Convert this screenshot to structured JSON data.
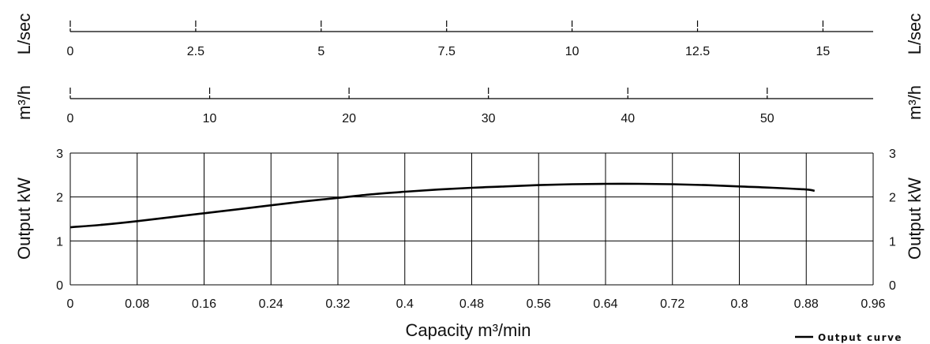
{
  "chart_data": {
    "type": "line",
    "xlabel": "Capacity m³/min",
    "ylabel": "Output kW",
    "ylabel_right": "Output kW",
    "xlim": [
      0,
      0.96
    ],
    "ylim": [
      0,
      3
    ],
    "x_ticks": [
      "0",
      "0.08",
      "0.16",
      "0.24",
      "0.32",
      "0.4",
      "0.48",
      "0.56",
      "0.64",
      "0.72",
      "0.8",
      "0.88",
      "0.96"
    ],
    "y_ticks": [
      "0",
      "1",
      "2",
      "3"
    ],
    "grid": true,
    "legend": "bottom-right",
    "series": [
      {
        "name": "Output curve",
        "x": [
          0,
          0.04,
          0.08,
          0.12,
          0.16,
          0.2,
          0.24,
          0.28,
          0.32,
          0.36,
          0.4,
          0.44,
          0.48,
          0.52,
          0.56,
          0.6,
          0.64,
          0.68,
          0.72,
          0.76,
          0.8,
          0.84,
          0.88,
          0.89
        ],
        "y": [
          1.31,
          1.37,
          1.45,
          1.54,
          1.63,
          1.72,
          1.81,
          1.9,
          1.98,
          2.06,
          2.12,
          2.17,
          2.21,
          2.24,
          2.27,
          2.29,
          2.3,
          2.3,
          2.29,
          2.27,
          2.24,
          2.21,
          2.17,
          2.14
        ]
      }
    ],
    "secondary_axes": [
      {
        "unit": "L/sec",
        "max": 16,
        "ticks": [
          "0",
          "2.5",
          "5",
          "7.5",
          "10",
          "12.5",
          "15"
        ],
        "values": [
          0,
          2.5,
          5,
          7.5,
          10,
          12.5,
          15
        ]
      },
      {
        "unit": "m³/h",
        "max": 57.6,
        "ticks": [
          "0",
          "10",
          "20",
          "30",
          "40",
          "50"
        ],
        "values": [
          0,
          10,
          20,
          30,
          40,
          50
        ]
      }
    ]
  }
}
